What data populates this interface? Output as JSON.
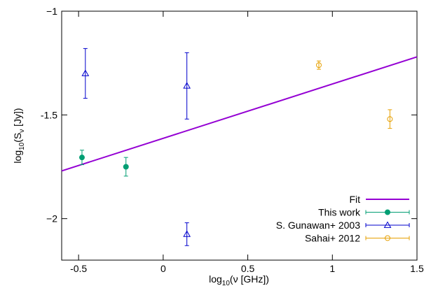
{
  "chart_data": {
    "type": "scatter",
    "title": "",
    "xlabel": {
      "base": "log",
      "sub": "10",
      "rest": "(ν [GHz])"
    },
    "ylabel": {
      "base": "log",
      "sub": "10",
      "mid": "(S",
      "sub2": "ν",
      "rest": " [Jy])"
    },
    "xlim": [
      -0.6,
      1.5
    ],
    "ylim": [
      -2.2,
      -1.0
    ],
    "xticks": [
      {
        "value": -0.5,
        "label": "-0.5"
      },
      {
        "value": 0,
        "label": "0"
      },
      {
        "value": 0.5,
        "label": "0.5"
      },
      {
        "value": 1,
        "label": "1"
      },
      {
        "value": 1.5,
        "label": "1.5"
      }
    ],
    "yticks": [
      {
        "value": -1,
        "label": "−1"
      },
      {
        "value": -1.5,
        "label": "-1.5"
      },
      {
        "value": -2,
        "label": "−2"
      }
    ],
    "legend_position": "bottom-right",
    "fit": {
      "name": "Fit",
      "color": "#9400d3",
      "x": [
        -0.6,
        1.5
      ],
      "y": [
        -1.77,
        -1.22
      ]
    },
    "series": [
      {
        "name": "This work",
        "color": "#009e73",
        "marker": "filled-circle",
        "points": [
          {
            "x": -0.48,
            "y": -1.705,
            "err": 0.035
          },
          {
            "x": -0.22,
            "y": -1.75,
            "err": 0.045
          }
        ]
      },
      {
        "name": "S. Gunawan+ 2003",
        "color": "#0000cc",
        "marker": "open-triangle",
        "points": [
          {
            "x": -0.46,
            "y": -1.3,
            "err": 0.12
          },
          {
            "x": 0.14,
            "y": -1.36,
            "err": 0.16
          },
          {
            "x": 0.14,
            "y": -2.075,
            "err": 0.055
          }
        ]
      },
      {
        "name": "Sahai+ 2012",
        "color": "#e69f00",
        "marker": "open-circle",
        "points": [
          {
            "x": 0.92,
            "y": -1.26,
            "err": 0.02
          },
          {
            "x": 1.34,
            "y": -1.52,
            "err": 0.045
          }
        ]
      }
    ]
  }
}
